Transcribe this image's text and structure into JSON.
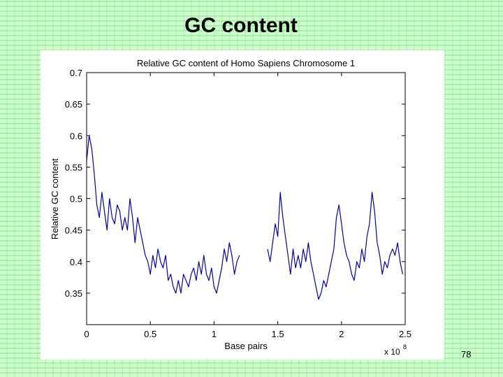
{
  "slide": {
    "title": "GC content",
    "page_number": "78",
    "background_color": "#ccffcc"
  },
  "chart_data": {
    "type": "line",
    "title": "Relative GC content of Homo Sapiens Chromosome 1",
    "xlabel": "Base pairs",
    "ylabel": "Relative GC content",
    "x_multiplier_text": "x 10",
    "x_multiplier_exponent": "8",
    "xlim": [
      0,
      2.5
    ],
    "ylim": [
      0.3,
      0.7
    ],
    "x_ticks": [
      0,
      0.5,
      1,
      1.5,
      2,
      2.5
    ],
    "x_tick_labels": [
      "0",
      "0.5",
      "1",
      "1.5",
      "2",
      "2.5"
    ],
    "y_ticks": [
      0.35,
      0.4,
      0.45,
      0.5,
      0.55,
      0.6,
      0.65,
      0.7
    ],
    "y_tick_labels": [
      "0.35",
      "0.4",
      "0.45",
      "0.5",
      "0.55",
      "0.6",
      "0.65",
      "0.7"
    ],
    "grid": false,
    "line_color": "#0000aa",
    "series": [
      {
        "segments": [
          [
            [
              0.0,
              0.56
            ],
            [
              0.02,
              0.6
            ],
            [
              0.04,
              0.58
            ],
            [
              0.06,
              0.54
            ],
            [
              0.08,
              0.49
            ],
            [
              0.1,
              0.47
            ],
            [
              0.12,
              0.51
            ],
            [
              0.14,
              0.48
            ],
            [
              0.16,
              0.45
            ],
            [
              0.18,
              0.5
            ],
            [
              0.2,
              0.47
            ],
            [
              0.22,
              0.46
            ],
            [
              0.24,
              0.49
            ],
            [
              0.26,
              0.48
            ],
            [
              0.28,
              0.45
            ],
            [
              0.3,
              0.47
            ],
            [
              0.32,
              0.45
            ],
            [
              0.34,
              0.5
            ],
            [
              0.36,
              0.47
            ],
            [
              0.38,
              0.43
            ],
            [
              0.4,
              0.47
            ],
            [
              0.42,
              0.45
            ],
            [
              0.44,
              0.43
            ],
            [
              0.46,
              0.41
            ],
            [
              0.48,
              0.4
            ],
            [
              0.5,
              0.38
            ],
            [
              0.52,
              0.41
            ],
            [
              0.54,
              0.39
            ],
            [
              0.56,
              0.42
            ],
            [
              0.58,
              0.4
            ],
            [
              0.6,
              0.39
            ],
            [
              0.62,
              0.41
            ],
            [
              0.64,
              0.37
            ],
            [
              0.66,
              0.38
            ],
            [
              0.68,
              0.36
            ],
            [
              0.7,
              0.35
            ],
            [
              0.72,
              0.37
            ],
            [
              0.74,
              0.35
            ],
            [
              0.76,
              0.38
            ],
            [
              0.78,
              0.37
            ],
            [
              0.8,
              0.36
            ],
            [
              0.82,
              0.38
            ],
            [
              0.84,
              0.39
            ],
            [
              0.86,
              0.37
            ],
            [
              0.88,
              0.4
            ],
            [
              0.9,
              0.38
            ],
            [
              0.92,
              0.41
            ],
            [
              0.94,
              0.38
            ],
            [
              0.96,
              0.37
            ],
            [
              0.98,
              0.39
            ],
            [
              1.0,
              0.36
            ],
            [
              1.02,
              0.35
            ],
            [
              1.04,
              0.37
            ],
            [
              1.06,
              0.39
            ],
            [
              1.08,
              0.42
            ],
            [
              1.1,
              0.4
            ],
            [
              1.12,
              0.43
            ],
            [
              1.14,
              0.41
            ],
            [
              1.16,
              0.38
            ],
            [
              1.18,
              0.4
            ],
            [
              1.2,
              0.41
            ]
          ],
          [
            [
              1.42,
              0.42
            ],
            [
              1.44,
              0.4
            ],
            [
              1.46,
              0.43
            ],
            [
              1.48,
              0.46
            ],
            [
              1.5,
              0.44
            ],
            [
              1.52,
              0.51
            ],
            [
              1.54,
              0.47
            ],
            [
              1.56,
              0.44
            ],
            [
              1.58,
              0.41
            ],
            [
              1.6,
              0.38
            ],
            [
              1.62,
              0.42
            ],
            [
              1.64,
              0.39
            ],
            [
              1.66,
              0.41
            ],
            [
              1.68,
              0.39
            ],
            [
              1.7,
              0.42
            ],
            [
              1.72,
              0.4
            ],
            [
              1.74,
              0.43
            ],
            [
              1.76,
              0.4
            ],
            [
              1.78,
              0.38
            ],
            [
              1.8,
              0.36
            ],
            [
              1.82,
              0.34
            ],
            [
              1.84,
              0.35
            ],
            [
              1.86,
              0.37
            ],
            [
              1.88,
              0.36
            ],
            [
              1.9,
              0.38
            ],
            [
              1.92,
              0.4
            ],
            [
              1.94,
              0.42
            ],
            [
              1.96,
              0.47
            ],
            [
              1.98,
              0.49
            ],
            [
              2.0,
              0.46
            ],
            [
              2.02,
              0.43
            ],
            [
              2.04,
              0.41
            ],
            [
              2.06,
              0.4
            ],
            [
              2.08,
              0.38
            ],
            [
              2.1,
              0.37
            ],
            [
              2.12,
              0.4
            ],
            [
              2.14,
              0.39
            ],
            [
              2.16,
              0.42
            ],
            [
              2.18,
              0.4
            ],
            [
              2.2,
              0.44
            ],
            [
              2.22,
              0.46
            ],
            [
              2.24,
              0.51
            ],
            [
              2.26,
              0.48
            ],
            [
              2.28,
              0.43
            ],
            [
              2.3,
              0.41
            ],
            [
              2.32,
              0.38
            ],
            [
              2.34,
              0.4
            ],
            [
              2.36,
              0.39
            ],
            [
              2.38,
              0.41
            ],
            [
              2.4,
              0.42
            ],
            [
              2.42,
              0.41
            ],
            [
              2.44,
              0.43
            ],
            [
              2.46,
              0.4
            ],
            [
              2.48,
              0.38
            ]
          ]
        ]
      }
    ]
  }
}
